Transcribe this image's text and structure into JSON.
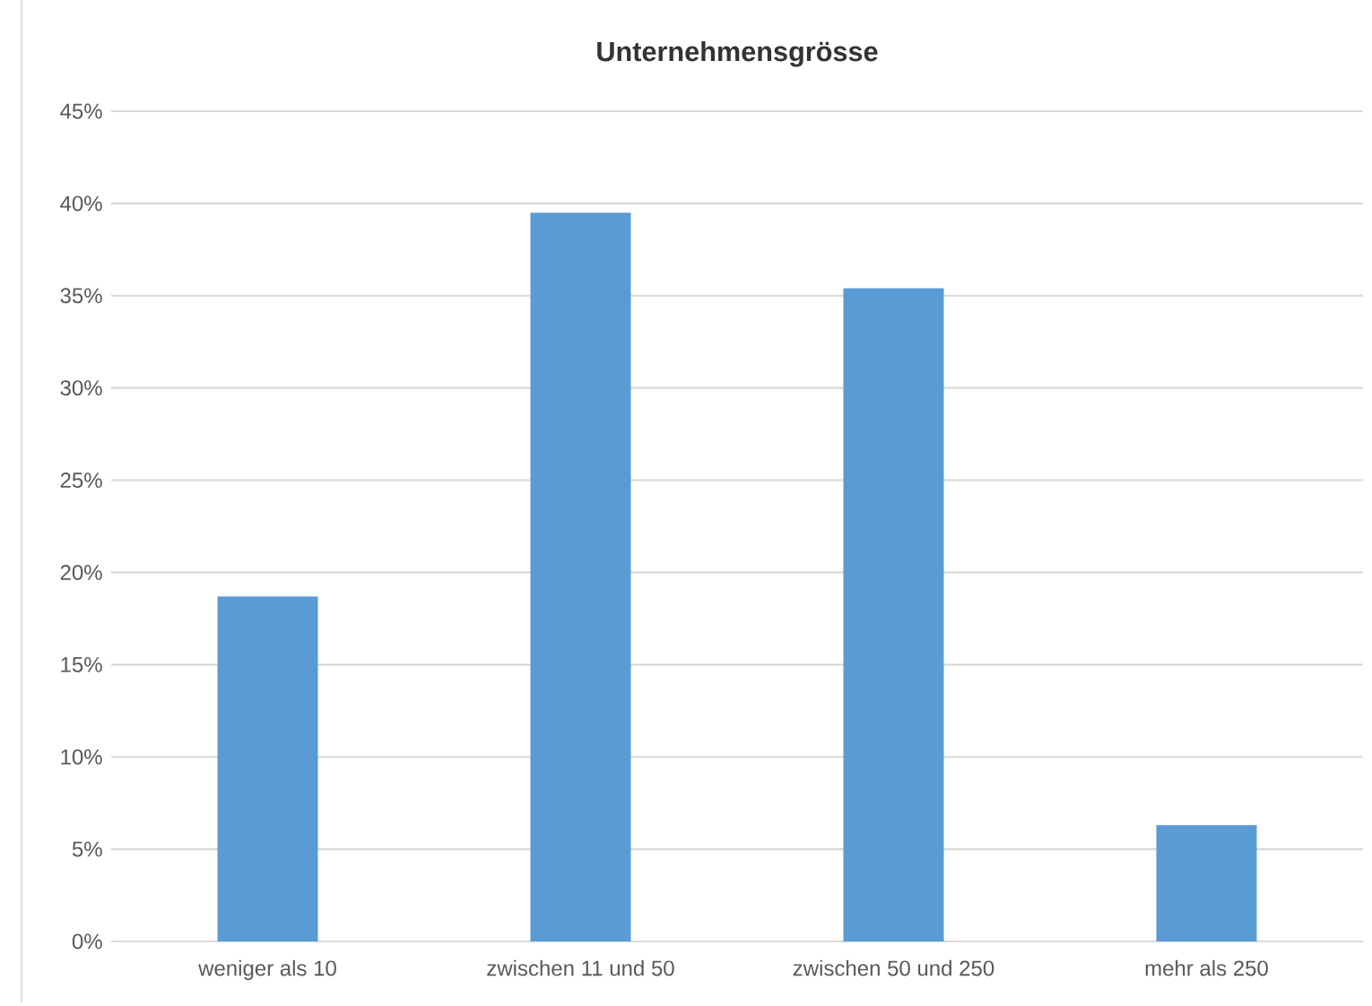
{
  "chart_data": {
    "type": "bar",
    "title": "Unternehmensgrösse",
    "categories": [
      "weniger als 10",
      "zwischen 11 und 50",
      "zwischen 50 und 250",
      "mehr als 250"
    ],
    "values": [
      18.7,
      39.5,
      35.4,
      6.3
    ],
    "color": "#5b9bd5",
    "ylim": [
      0,
      45
    ],
    "yticks": [
      {
        "value": 0,
        "label": "0%"
      },
      {
        "value": 5,
        "label": "5%"
      },
      {
        "value": 10,
        "label": "10%"
      },
      {
        "value": 15,
        "label": "15%"
      },
      {
        "value": 20,
        "label": "20%"
      },
      {
        "value": 25,
        "label": "25%"
      },
      {
        "value": 30,
        "label": "30%"
      },
      {
        "value": 35,
        "label": "35%"
      },
      {
        "value": 40,
        "label": "40%"
      },
      {
        "value": 45,
        "label": "45%"
      }
    ],
    "grid": "y"
  }
}
